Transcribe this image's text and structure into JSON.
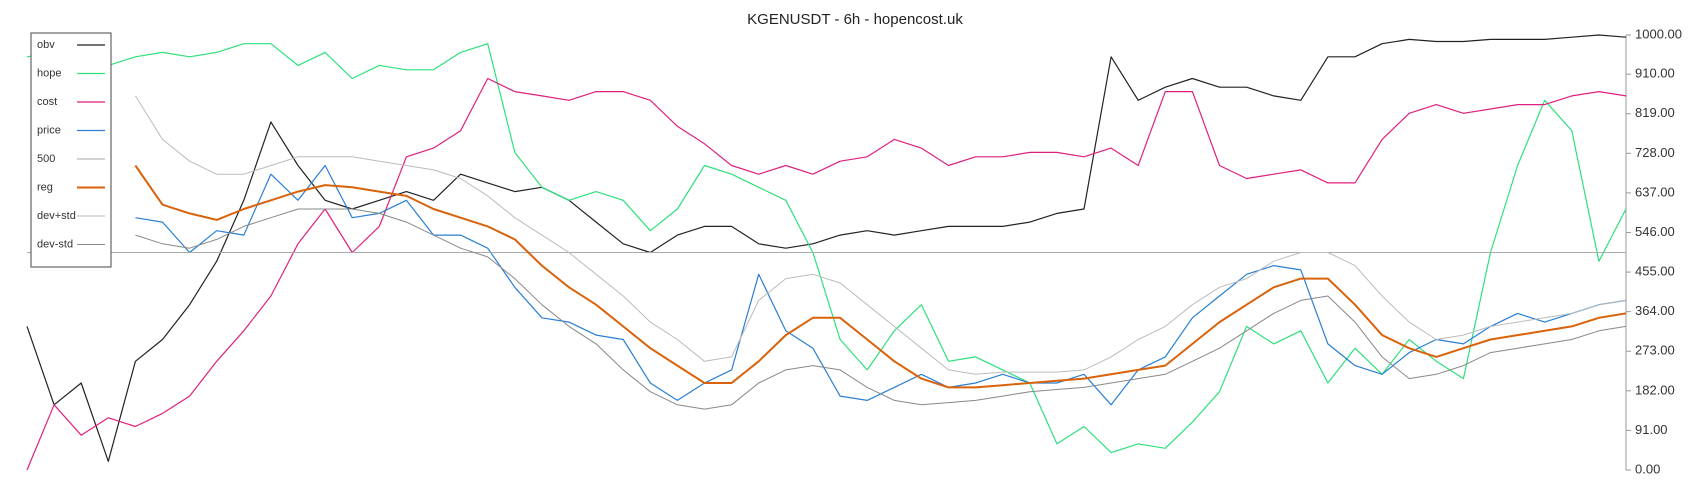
{
  "chart_data": {
    "type": "line",
    "title": "KGENUSDT - 6h - hopencost.uk",
    "ylim": [
      0,
      1000
    ],
    "yticks": [
      {
        "value": 0,
        "label": "0.00"
      },
      {
        "value": 91,
        "label": "91.00"
      },
      {
        "value": 182,
        "label": "182.00"
      },
      {
        "value": 273,
        "label": "273.00"
      },
      {
        "value": 364,
        "label": "364.00"
      },
      {
        "value": 455,
        "label": "455.00"
      },
      {
        "value": 546,
        "label": "546.00"
      },
      {
        "value": 637,
        "label": "637.00"
      },
      {
        "value": 728,
        "label": "728.00"
      },
      {
        "value": 819,
        "label": "819.00"
      },
      {
        "value": 910,
        "label": "910.00"
      },
      {
        "value": 1000,
        "label": "1000.00"
      }
    ],
    "y_axis_side": "right",
    "grid": false,
    "legend": "upper left",
    "series": [
      {
        "name": "obv",
        "color": "#222222",
        "width": 1.2,
        "values": [
          330,
          150,
          200,
          20,
          250,
          300,
          380,
          480,
          620,
          800,
          700,
          620,
          600,
          620,
          640,
          620,
          680,
          660,
          640,
          650,
          620,
          570,
          520,
          500,
          540,
          560,
          560,
          520,
          510,
          520,
          540,
          550,
          540,
          550,
          560,
          560,
          560,
          570,
          590,
          600,
          950,
          850,
          880,
          900,
          880,
          880,
          860,
          850,
          950,
          950,
          980,
          990,
          985,
          985,
          990,
          990,
          990,
          995,
          1000,
          995
        ]
      },
      {
        "name": "hope",
        "color": "#2ee07a",
        "width": 1.2,
        "values": [
          950,
          960,
          950,
          930,
          950,
          960,
          950,
          960,
          980,
          980,
          930,
          960,
          900,
          930,
          920,
          920,
          960,
          980,
          730,
          650,
          620,
          640,
          620,
          550,
          600,
          700,
          680,
          650,
          620,
          500,
          300,
          230,
          320,
          380,
          250,
          260,
          230,
          200,
          60,
          100,
          40,
          60,
          50,
          110,
          180,
          330,
          290,
          320,
          200,
          280,
          220,
          300,
          250,
          210,
          500,
          700,
          850,
          780,
          480,
          600
        ]
      },
      {
        "name": "cost",
        "color": "#e0207e",
        "width": 1.2,
        "values": [
          0,
          150,
          80,
          120,
          100,
          130,
          170,
          250,
          320,
          400,
          520,
          600,
          500,
          560,
          720,
          740,
          780,
          900,
          870,
          860,
          850,
          870,
          870,
          850,
          790,
          750,
          700,
          680,
          700,
          680,
          710,
          720,
          760,
          740,
          700,
          720,
          720,
          730,
          730,
          720,
          740,
          700,
          870,
          870,
          700,
          670,
          680,
          690,
          660,
          660,
          760,
          820,
          840,
          820,
          830,
          840,
          840,
          860,
          870,
          860
        ]
      },
      {
        "name": "price",
        "color": "#2a7fd4",
        "width": 1.2,
        "values": [
          null,
          null,
          null,
          null,
          580,
          570,
          500,
          550,
          540,
          680,
          620,
          700,
          580,
          590,
          620,
          540,
          540,
          510,
          420,
          350,
          340,
          310,
          300,
          200,
          160,
          200,
          230,
          450,
          320,
          280,
          170,
          160,
          190,
          220,
          190,
          200,
          220,
          200,
          200,
          220,
          150,
          230,
          260,
          350,
          400,
          450,
          470,
          460,
          290,
          240,
          220,
          270,
          300,
          290,
          330,
          360,
          340,
          360,
          380,
          390
        ]
      },
      {
        "name": "500",
        "color": "#aaaaaa",
        "width": 1,
        "values": [
          500,
          500,
          500,
          500,
          500,
          500,
          500,
          500,
          500,
          500,
          500,
          500,
          500,
          500,
          500,
          500,
          500,
          500,
          500,
          500,
          500,
          500,
          500,
          500,
          500,
          500,
          500,
          500,
          500,
          500,
          500,
          500,
          500,
          500,
          500,
          500,
          500,
          500,
          500,
          500,
          500,
          500,
          500,
          500,
          500,
          500,
          500,
          500,
          500,
          500,
          500,
          500,
          500,
          500,
          500,
          500,
          500,
          500,
          500,
          500
        ]
      },
      {
        "name": "reg",
        "color": "#d9620a",
        "width": 2,
        "values": [
          null,
          null,
          null,
          null,
          700,
          610,
          590,
          575,
          600,
          620,
          640,
          655,
          650,
          640,
          630,
          600,
          580,
          560,
          530,
          470,
          420,
          380,
          330,
          280,
          240,
          200,
          200,
          250,
          310,
          350,
          350,
          300,
          250,
          210,
          190,
          190,
          195,
          200,
          205,
          210,
          220,
          230,
          240,
          290,
          340,
          380,
          420,
          440,
          440,
          380,
          310,
          280,
          260,
          280,
          300,
          310,
          320,
          330,
          350,
          360
        ]
      },
      {
        "name": "dev+std",
        "color": "#bbbbbb",
        "width": 1,
        "values": [
          null,
          null,
          null,
          null,
          860,
          760,
          710,
          680,
          680,
          700,
          720,
          720,
          720,
          710,
          700,
          690,
          670,
          630,
          580,
          540,
          500,
          450,
          400,
          340,
          300,
          250,
          260,
          390,
          440,
          450,
          430,
          380,
          330,
          280,
          230,
          220,
          225,
          225,
          225,
          230,
          260,
          300,
          330,
          380,
          420,
          440,
          480,
          500,
          500,
          470,
          400,
          340,
          300,
          310,
          330,
          340,
          350,
          360,
          380,
          390
        ]
      },
      {
        "name": "dev-std",
        "color": "#888888",
        "width": 1,
        "values": [
          null,
          null,
          null,
          null,
          540,
          520,
          510,
          530,
          560,
          580,
          600,
          600,
          600,
          590,
          570,
          540,
          510,
          490,
          440,
          380,
          330,
          290,
          230,
          180,
          150,
          140,
          150,
          200,
          230,
          240,
          230,
          190,
          160,
          150,
          155,
          160,
          170,
          180,
          185,
          190,
          200,
          210,
          220,
          250,
          280,
          320,
          360,
          390,
          400,
          340,
          260,
          210,
          220,
          240,
          270,
          280,
          290,
          300,
          320,
          330
        ]
      }
    ]
  }
}
